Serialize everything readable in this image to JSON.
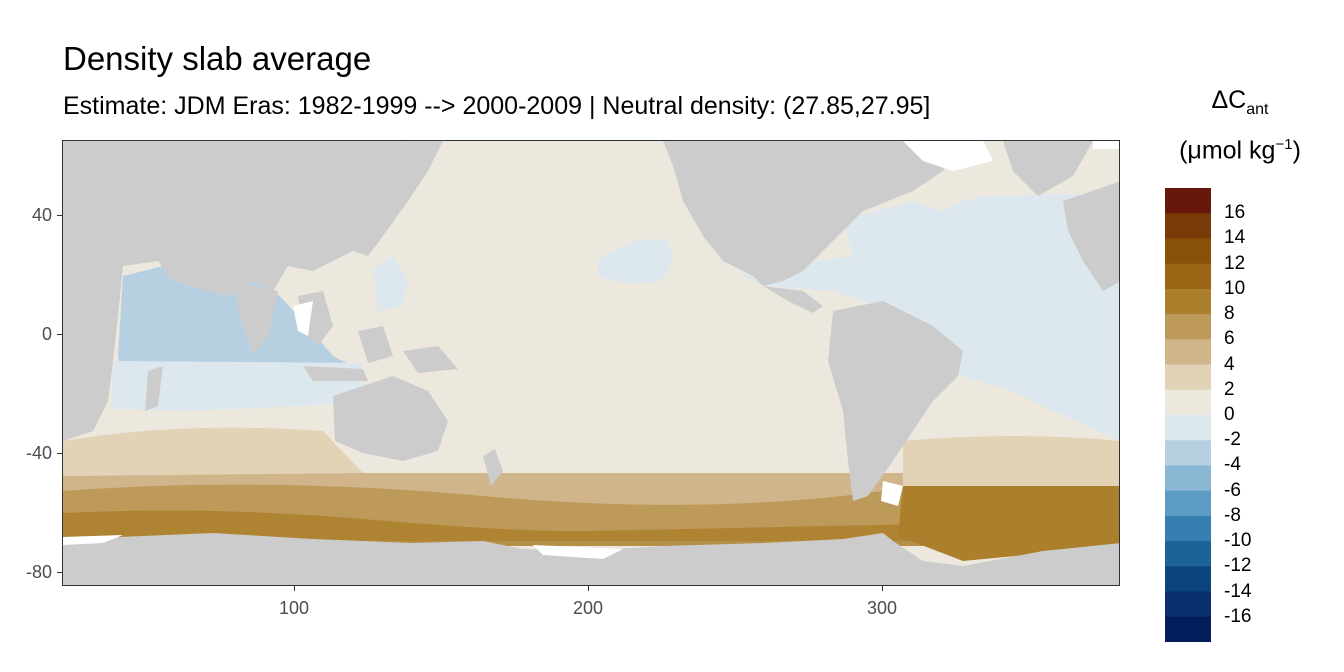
{
  "title": "Density slab average",
  "subtitle": "Estimate: JDM Eras: 1982-1999 --> 2000-2009 | Neutral density: (27.85,27.95]",
  "map": {
    "x_ticks": [
      "100",
      "200",
      "300"
    ],
    "y_ticks": [
      "40",
      "0",
      "-40",
      "-80"
    ],
    "land_color": "#cccccc",
    "missing_color": "#ffffff"
  },
  "legend": {
    "title_symbol": "ΔC",
    "title_subscript": "ant",
    "unit_open": "(μmol kg",
    "unit_sup": "−1",
    "unit_close": ")",
    "labels": [
      "16",
      "14",
      "12",
      "10",
      "8",
      "6",
      "4",
      "2",
      "0",
      "-2",
      "-4",
      "-6",
      "-8",
      "-10",
      "-12",
      "-14",
      "-16"
    ],
    "colors": [
      "#67180a",
      "#7a3a08",
      "#8a5208",
      "#9a6514",
      "#ab7f2c",
      "#bd9a5a",
      "#d0b58a",
      "#e3d3b6",
      "#ede8de",
      "#dde8ee",
      "#b6d0e2",
      "#8ab8d4",
      "#5c9bc3",
      "#357fb0",
      "#1a6298",
      "#0b447f",
      "#082f6c",
      "#041e5c"
    ]
  }
}
